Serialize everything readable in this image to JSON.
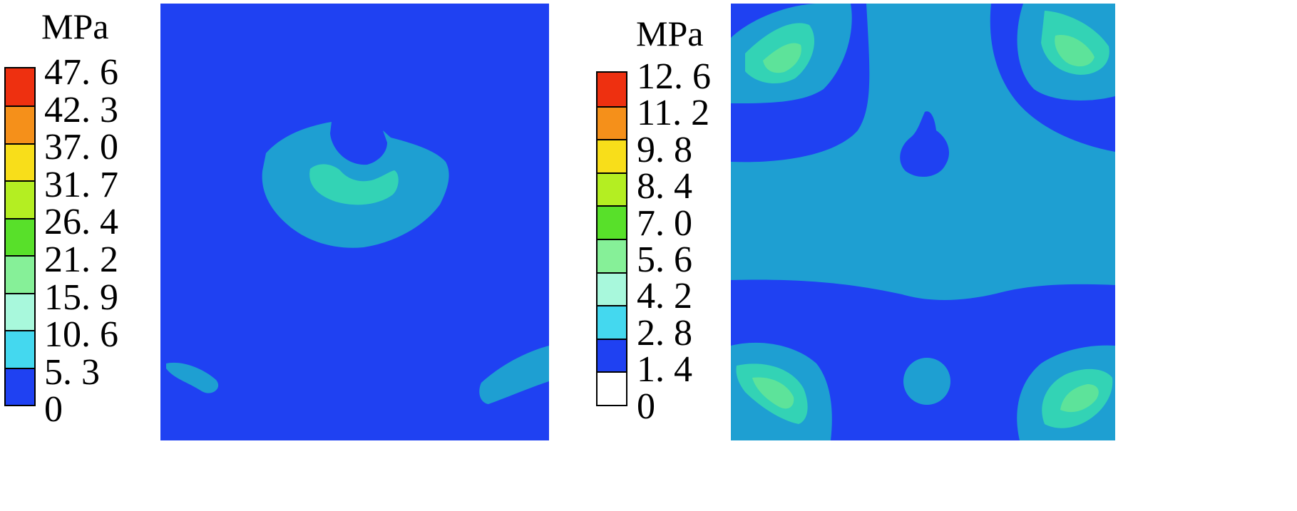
{
  "panels": [
    {
      "unit": "MPa",
      "ticks": [
        "47. 6",
        "42. 3",
        "37. 0",
        "31. 7",
        "26. 4",
        "21. 2",
        "15. 9",
        "10. 6",
        "5. 3",
        "0"
      ],
      "colors": [
        "#ee3010",
        "#f5901a",
        "#f8de1a",
        "#b4ee22",
        "#58e02a",
        "#86f098",
        "#a8f8dc",
        "#44d8ef",
        "#1f41f2"
      ]
    },
    {
      "unit": "MPa",
      "ticks": [
        "12. 6",
        "11. 2",
        "9. 8",
        "8. 4",
        "7. 0",
        "5. 6",
        "4. 2",
        "2. 8",
        "1. 4",
        "0"
      ],
      "colors": [
        "#ee3010",
        "#f5901a",
        "#f8de1a",
        "#b4ee22",
        "#58e02a",
        "#86f098",
        "#a8f8dc",
        "#44d8ef",
        "#1f41f2",
        "#ffffff"
      ]
    }
  ],
  "field_colors": {
    "background": "#1f41f2",
    "level1": "#1e9fd2",
    "level2": "#33d3b5",
    "level3": "#5de39a",
    "level4": "#3ccf6a"
  }
}
